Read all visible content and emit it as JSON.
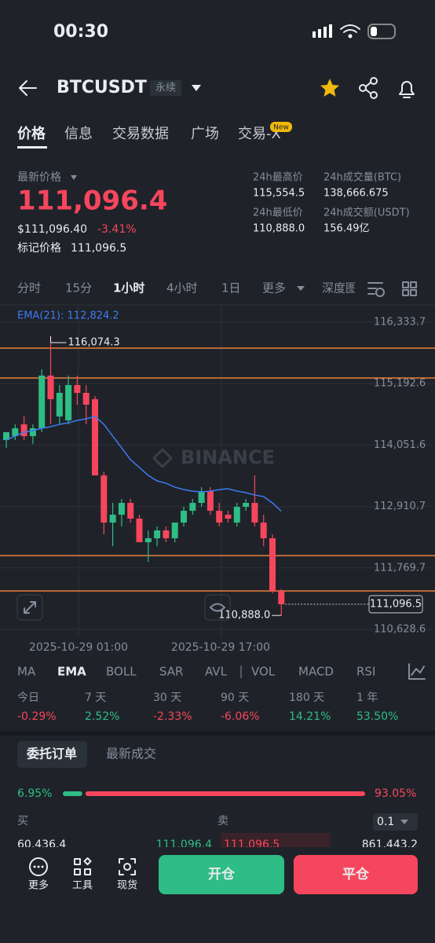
{
  "status": {
    "time": "00:30"
  },
  "header": {
    "symbol": "BTCUSDT",
    "tag": "永续"
  },
  "tabs": {
    "items": [
      "价格",
      "信息",
      "交易数据",
      "广场",
      "交易-X"
    ],
    "badge": "New"
  },
  "price": {
    "label": "最新价格",
    "last": "111,096.4",
    "usd": "$111,096.40",
    "change": "-3.41%",
    "mark_label": "标记价格",
    "mark": "111,096.5"
  },
  "stats": [
    {
      "label": "24h最高价",
      "value": "115,554.5"
    },
    {
      "label": "24h成交量(BTC)",
      "value": "138,666.675"
    },
    {
      "label": "24h最低价",
      "value": "110,888.0"
    },
    {
      "label": "24h成交额(USDT)",
      "value": "156.49亿"
    }
  ],
  "intervals": [
    "分时",
    "15分",
    "1小时",
    "4小时",
    "1日",
    "更多",
    "深度图"
  ],
  "chart": {
    "type": "candlestick",
    "ema_label": "EMA(21): 112,824.2",
    "watermark": "BINANCE",
    "ylim": [
      110497,
      116625
    ],
    "yticks": [
      {
        "value": 116333.7,
        "label": "116,333.7"
      },
      {
        "value": 115192.6,
        "label": "115,192.6"
      },
      {
        "value": 114051.6,
        "label": "114,051.6"
      },
      {
        "value": 112910.7,
        "label": "112,910.7"
      },
      {
        "value": 111769.7,
        "label": "111,769.7"
      },
      {
        "value": 110628.6,
        "label": "110,628.6"
      }
    ],
    "x_labels": [
      "2025-10-29 01:00",
      "2025-10-29 17:00"
    ],
    "high_label": "116,074.3",
    "low_label": "110,888.0",
    "last_label": "111,096.5",
    "order_lines": [
      115852,
      115298,
      111999,
      111344
    ],
    "candles": [
      {
        "open": 114145,
        "high": 114291,
        "low": 113999,
        "close": 114291
      },
      {
        "open": 114218,
        "high": 114437,
        "low": 114145,
        "close": 114364
      },
      {
        "open": 114437,
        "high": 114583,
        "low": 114145,
        "close": 114218
      },
      {
        "open": 114218,
        "high": 114437,
        "low": 114072,
        "close": 114364
      },
      {
        "open": 114364,
        "high": 115458,
        "low": 114291,
        "close": 115342
      },
      {
        "open": 115342,
        "high": 116074.3,
        "low": 114437,
        "close": 114904
      },
      {
        "open": 114583,
        "high": 115166,
        "low": 114437,
        "close": 115021
      },
      {
        "open": 114510,
        "high": 115342,
        "low": 114437,
        "close": 115166
      },
      {
        "open": 115166,
        "high": 115342,
        "low": 114802,
        "close": 115021
      },
      {
        "open": 115021,
        "high": 115166,
        "low": 114437,
        "close": 114802
      },
      {
        "open": 114904,
        "high": 114960,
        "low": 113489,
        "close": 113489
      },
      {
        "open": 113489,
        "high": 113560,
        "low": 112394,
        "close": 112613
      },
      {
        "open": 112613,
        "high": 112978,
        "low": 112175,
        "close": 112759
      },
      {
        "open": 112759,
        "high": 113051,
        "low": 112540,
        "close": 112978
      },
      {
        "open": 112978,
        "high": 113051,
        "low": 112613,
        "close": 112686
      },
      {
        "open": 112686,
        "high": 112759,
        "low": 112248,
        "close": 112248
      },
      {
        "open": 112248,
        "high": 112467,
        "low": 111883,
        "close": 112321
      },
      {
        "open": 112321,
        "high": 112540,
        "low": 112175,
        "close": 112467
      },
      {
        "open": 112467,
        "high": 112540,
        "low": 112248,
        "close": 112321
      },
      {
        "open": 112321,
        "high": 112613,
        "low": 112248,
        "close": 112613
      },
      {
        "open": 112613,
        "high": 112905,
        "low": 112540,
        "close": 112832
      },
      {
        "open": 112832,
        "high": 113051,
        "low": 112759,
        "close": 112978
      },
      {
        "open": 112978,
        "high": 113270,
        "low": 112905,
        "close": 113197
      },
      {
        "open": 113197,
        "high": 113270,
        "low": 112759,
        "close": 112832
      },
      {
        "open": 112832,
        "high": 112978,
        "low": 112540,
        "close": 112613
      },
      {
        "open": 112759,
        "high": 112832,
        "low": 112613,
        "close": 112686
      },
      {
        "open": 112613,
        "high": 112978,
        "low": 112540,
        "close": 112905
      },
      {
        "open": 112905,
        "high": 113051,
        "low": 112832,
        "close": 112978
      },
      {
        "open": 112978,
        "high": 113489,
        "low": 112540,
        "close": 112613
      },
      {
        "open": 112613,
        "high": 112759,
        "low": 112175,
        "close": 112321
      },
      {
        "open": 112321,
        "high": 112394,
        "low": 111300,
        "close": 111344
      },
      {
        "open": 111344,
        "high": 111380,
        "low": 110888.0,
        "close": 111096.5
      }
    ],
    "ema": [
      114145,
      114218,
      114291,
      114320,
      114364,
      114393,
      114437,
      114466,
      114510,
      114539,
      114583,
      114437,
      114218,
      113999,
      113780,
      113634,
      113489,
      113386,
      113343,
      113270,
      113226,
      113197,
      113182,
      113197,
      113226,
      113241,
      113197,
      113168,
      113124,
      113095,
      112978,
      112824.2
    ]
  },
  "indicators": [
    "MA",
    "EMA",
    "BOLL",
    "SAR",
    "AVL",
    "VOL",
    "MACD",
    "RSI"
  ],
  "performance": [
    {
      "period": "今日",
      "change": "-0.29%"
    },
    {
      "period": "7 天",
      "change": "2.52%"
    },
    {
      "period": "30 天",
      "change": "-2.33%"
    },
    {
      "period": "90 天",
      "change": "-6.06%"
    },
    {
      "period": "180 天",
      "change": "14.21%"
    },
    {
      "period": "1 年",
      "change": "53.50%"
    }
  ],
  "orders": {
    "tabs": [
      "委托订单",
      "最新成交"
    ],
    "buy_ratio": "6.95%",
    "sell_ratio": "93.05%",
    "buy": "买",
    "sell": "卖",
    "precision": "0.1",
    "row": [
      "60,436.4",
      "111,096.4",
      "111,096.5",
      "861,443.2"
    ]
  },
  "bottom": {
    "items": [
      "更多",
      "工具",
      "现货"
    ],
    "open": "开仓",
    "close": "平仓"
  }
}
